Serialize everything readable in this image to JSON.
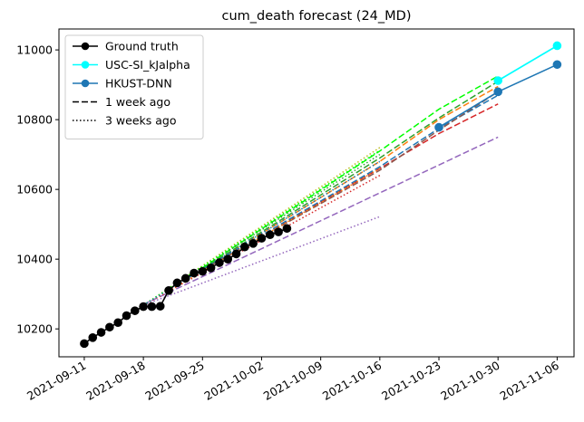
{
  "chart_data": {
    "type": "line",
    "title": "cum_death forecast (24_MD)",
    "xlabel": "",
    "ylabel": "",
    "x_ticks": [
      "2021-09-11",
      "2021-09-18",
      "2021-09-25",
      "2021-10-02",
      "2021-10-09",
      "2021-10-16",
      "2021-10-23",
      "2021-10-30",
      "2021-11-06"
    ],
    "y_ticks": [
      10200,
      10400,
      10600,
      10800,
      11000
    ],
    "xlim": [
      "2021-09-08",
      "2021-11-08"
    ],
    "ylim": [
      10120,
      11060
    ],
    "grid": false,
    "legend_position": "top-left",
    "legend": [
      {
        "label": "Ground truth",
        "color": "#000000",
        "style": "solid",
        "marker": true
      },
      {
        "label": "USC-SI_kJalpha",
        "color": "#00ffff",
        "style": "solid",
        "marker": true
      },
      {
        "label": "HKUST-DNN",
        "color": "#1f77b4",
        "style": "solid",
        "marker": true
      },
      {
        "label": "1 week ago",
        "color": "#000000",
        "style": "dashed",
        "marker": false
      },
      {
        "label": "3 weeks ago",
        "color": "#000000",
        "style": "dotted",
        "marker": false
      }
    ],
    "series": [
      {
        "name": "Ground truth",
        "color": "#000000",
        "style": "solid",
        "marker": true,
        "points": [
          [
            "2021-09-11",
            10158
          ],
          [
            "2021-09-12",
            10175
          ],
          [
            "2021-09-13",
            10190
          ],
          [
            "2021-09-14",
            10205
          ],
          [
            "2021-09-15",
            10218
          ],
          [
            "2021-09-16",
            10238
          ],
          [
            "2021-09-17",
            10252
          ],
          [
            "2021-09-18",
            10264
          ],
          [
            "2021-09-19",
            10264
          ],
          [
            "2021-09-20",
            10265
          ],
          [
            "2021-09-21",
            10310
          ],
          [
            "2021-09-22",
            10332
          ],
          [
            "2021-09-23",
            10345
          ],
          [
            "2021-09-24",
            10360
          ],
          [
            "2021-09-25",
            10365
          ],
          [
            "2021-09-26",
            10375
          ],
          [
            "2021-09-27",
            10390
          ],
          [
            "2021-09-28",
            10400
          ],
          [
            "2021-09-29",
            10415
          ],
          [
            "2021-09-30",
            10435
          ],
          [
            "2021-10-01",
            10445
          ],
          [
            "2021-10-02",
            10460
          ],
          [
            "2021-10-03",
            10470
          ],
          [
            "2021-10-04",
            10478
          ],
          [
            "2021-10-05",
            10488
          ]
        ]
      },
      {
        "name": "USC-SI_kJalpha",
        "color": "#00ffff",
        "style": "solid",
        "marker": true,
        "points": [
          [
            "2021-10-30",
            10912
          ],
          [
            "2021-11-06",
            11012
          ]
        ]
      },
      {
        "name": "HKUST-DNN",
        "color": "#1f77b4",
        "style": "solid",
        "marker": true,
        "points": [
          [
            "2021-10-23",
            10778
          ],
          [
            "2021-10-30",
            10880
          ],
          [
            "2021-11-06",
            10958
          ]
        ]
      },
      {
        "name": "1 week ago",
        "color": "#9467bd",
        "style": "dashed",
        "marker": false,
        "points": [
          [
            "2021-09-18",
            10270
          ],
          [
            "2021-10-30",
            10750
          ]
        ]
      },
      {
        "name": "1 week ago",
        "color": "#d62728",
        "style": "dashed",
        "marker": false,
        "points": [
          [
            "2021-09-25",
            10370
          ],
          [
            "2021-10-16",
            10660
          ],
          [
            "2021-10-23",
            10760
          ],
          [
            "2021-10-30",
            10845
          ]
        ]
      },
      {
        "name": "1 week ago",
        "color": "#ff7f0e",
        "style": "dashed",
        "marker": false,
        "points": [
          [
            "2021-09-25",
            10370
          ],
          [
            "2021-10-16",
            10680
          ],
          [
            "2021-10-23",
            10800
          ],
          [
            "2021-10-30",
            10895
          ]
        ]
      },
      {
        "name": "1 week ago",
        "color": "#1f77b4",
        "style": "dashed",
        "marker": false,
        "points": [
          [
            "2021-09-25",
            10370
          ],
          [
            "2021-10-16",
            10665
          ],
          [
            "2021-10-23",
            10775
          ],
          [
            "2021-10-30",
            10870
          ]
        ]
      },
      {
        "name": "1 week ago",
        "color": "#2ca02c",
        "style": "dashed",
        "marker": false,
        "points": [
          [
            "2021-09-25",
            10372
          ],
          [
            "2021-10-16",
            10690
          ],
          [
            "2021-10-23",
            10805
          ],
          [
            "2021-10-30",
            10910
          ]
        ]
      },
      {
        "name": "1 week ago",
        "color": "#00ff00",
        "style": "dashed",
        "marker": false,
        "points": [
          [
            "2021-09-25",
            10375
          ],
          [
            "2021-10-16",
            10710
          ],
          [
            "2021-10-23",
            10830
          ],
          [
            "2021-10-30",
            10925
          ]
        ]
      },
      {
        "name": "1 week ago",
        "color": "#8c564b",
        "style": "dashed",
        "marker": false,
        "points": [
          [
            "2021-09-25",
            10368
          ],
          [
            "2021-10-16",
            10655
          ],
          [
            "2021-10-23",
            10770
          ],
          [
            "2021-10-30",
            10880
          ]
        ]
      },
      {
        "name": "3 weeks ago",
        "color": "#9467bd",
        "style": "dotted",
        "marker": false,
        "points": [
          [
            "2021-09-18",
            10268
          ],
          [
            "2021-10-16",
            10522
          ]
        ]
      },
      {
        "name": "3 weeks ago",
        "color": "#d62728",
        "style": "dotted",
        "marker": false,
        "points": [
          [
            "2021-09-18",
            10268
          ],
          [
            "2021-10-16",
            10640
          ]
        ]
      },
      {
        "name": "3 weeks ago",
        "color": "#ff7f0e",
        "style": "dotted",
        "marker": false,
        "points": [
          [
            "2021-09-18",
            10268
          ],
          [
            "2021-10-16",
            10660
          ]
        ]
      },
      {
        "name": "3 weeks ago",
        "color": "#2ca02c",
        "style": "dotted",
        "marker": false,
        "points": [
          [
            "2021-09-18",
            10268
          ],
          [
            "2021-10-16",
            10700
          ]
        ]
      },
      {
        "name": "3 weeks ago",
        "color": "#bcbd22",
        "style": "dotted",
        "marker": false,
        "points": [
          [
            "2021-09-18",
            10268
          ],
          [
            "2021-10-16",
            10720
          ]
        ]
      },
      {
        "name": "3 weeks ago",
        "color": "#00ff00",
        "style": "dotted",
        "marker": false,
        "points": [
          [
            "2021-09-18",
            10268
          ],
          [
            "2021-10-16",
            10712
          ]
        ]
      },
      {
        "name": "3 weeks ago",
        "color": "#1f77b4",
        "style": "dotted",
        "marker": false,
        "points": [
          [
            "2021-09-18",
            10268
          ],
          [
            "2021-10-16",
            10680
          ]
        ]
      }
    ]
  }
}
